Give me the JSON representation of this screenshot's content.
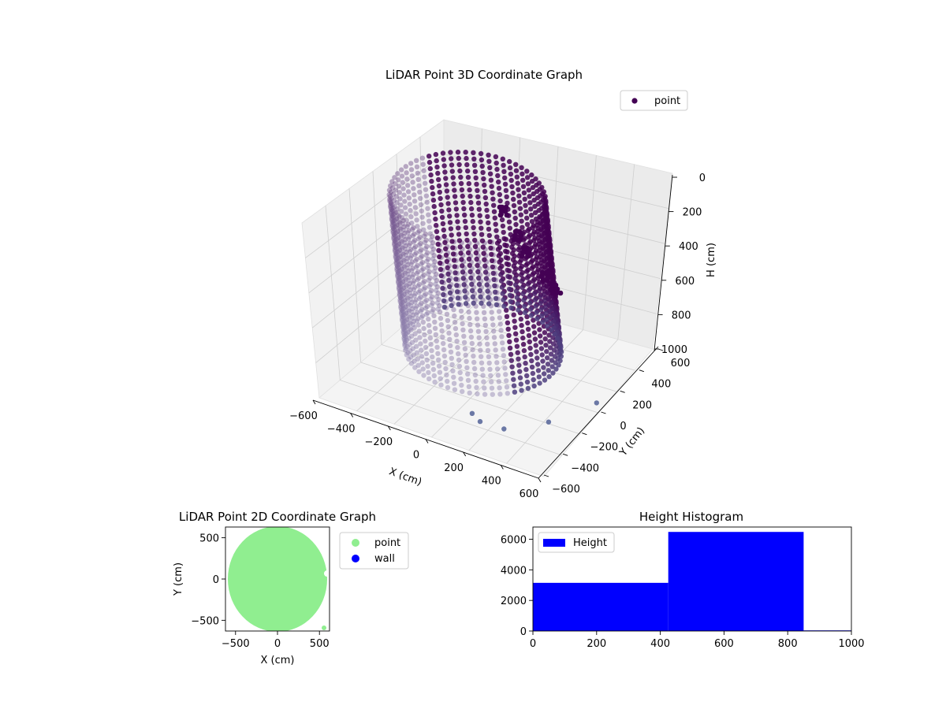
{
  "chart_data": [
    {
      "type": "scatter3d",
      "title": "LiDAR Point 3D Coordinate Graph",
      "xlabel": "X (cm)",
      "ylabel": "Y (cm)",
      "zlabel": "H (cm)",
      "xticks": [
        "−600",
        "−400",
        "−200",
        "0",
        "200",
        "400",
        "600"
      ],
      "yticks": [
        "−600",
        "−400",
        "−200",
        "0",
        "200",
        "400",
        "600"
      ],
      "zticks": [
        "0",
        "200",
        "400",
        "600",
        "800",
        "1000"
      ],
      "xlim": [
        -600,
        600
      ],
      "ylim": [
        -600,
        600
      ],
      "zlim": [
        0,
        1000
      ],
      "z_inverted": true,
      "legend": {
        "position": "top-right",
        "entries": [
          {
            "label": "point",
            "color": "#440154"
          }
        ]
      },
      "shape": {
        "form": "cylinder wall",
        "radius": 600,
        "height_range": [
          0,
          1000
        ]
      },
      "outliers": [
        {
          "x": 150,
          "y": -500,
          "h": 1000
        },
        {
          "x": 250,
          "y": -560,
          "h": 1000
        },
        {
          "x": 450,
          "y": -550,
          "h": 1000
        },
        {
          "x": 700,
          "y": -300,
          "h": 1000
        },
        {
          "x": 900,
          "y": 100,
          "h": 1000
        }
      ]
    },
    {
      "type": "scatter",
      "title": "LiDAR Point 2D Coordinate Graph",
      "xlabel": "X (cm)",
      "ylabel": "Y (cm)",
      "xticks": [
        "−500",
        "0",
        "500"
      ],
      "yticks": [
        "500",
        "0",
        "−500"
      ],
      "xlim": [
        -620,
        620
      ],
      "ylim": [
        -630,
        630
      ],
      "legend": {
        "position": "outside-right",
        "entries": [
          {
            "label": "point",
            "color": "#90ee90"
          },
          {
            "label": "wall",
            "color": "#0000ff"
          }
        ]
      },
      "shape": {
        "form": "filled disc",
        "center": [
          0,
          0
        ],
        "radius": 600
      }
    },
    {
      "type": "histogram",
      "title": "Height Histogram",
      "xticks": [
        "0",
        "200",
        "400",
        "600",
        "800",
        "1000"
      ],
      "yticks": [
        "0",
        "2000",
        "4000",
        "6000"
      ],
      "xlim": [
        0,
        1000
      ],
      "ylim": [
        0,
        6800
      ],
      "bins": [
        {
          "start": 0,
          "end": 425,
          "count": 3150
        },
        {
          "start": 425,
          "end": 850,
          "count": 6480
        },
        {
          "start": 850,
          "end": 1000,
          "count": 40
        }
      ],
      "color": "#0000ff",
      "legend": {
        "position": "top-left",
        "entries": [
          {
            "label": "Height",
            "color": "#0000ff"
          }
        ]
      }
    }
  ]
}
